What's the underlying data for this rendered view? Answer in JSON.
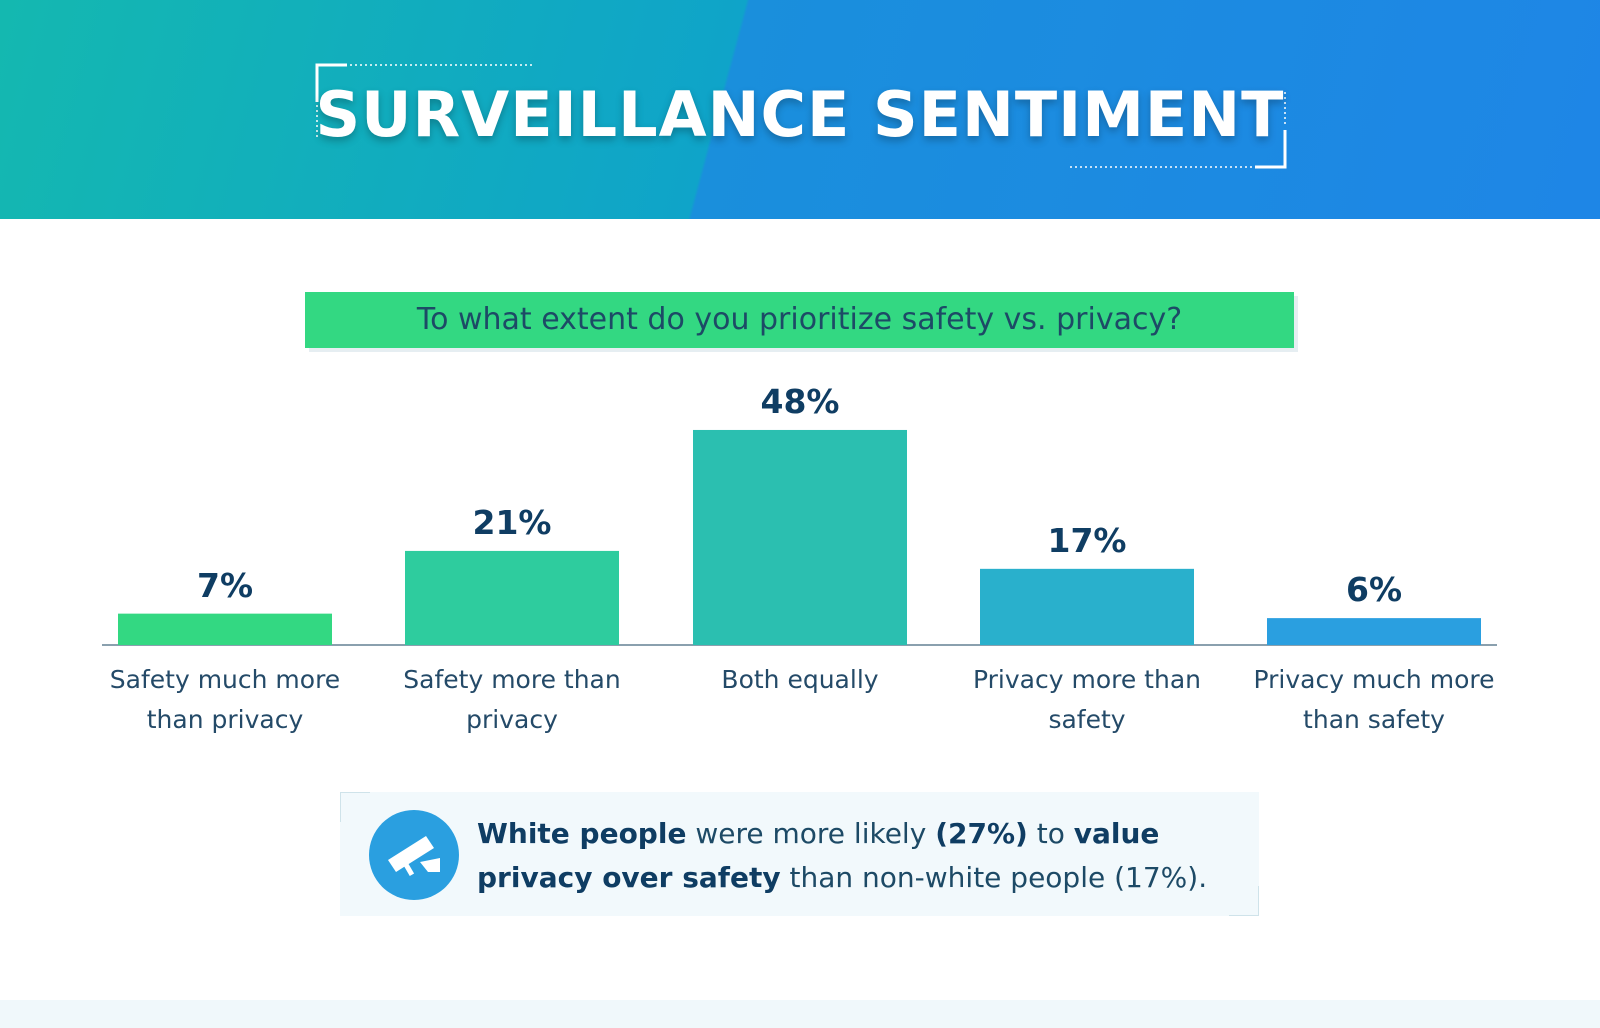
{
  "header": {
    "title": "SURVEILLANCE SENTIMENT"
  },
  "chart_data": {
    "type": "bar",
    "title": "To what extent do you prioritize safety vs. privacy?",
    "categories": [
      "Safety much more than privacy",
      "Safety more than privacy",
      "Both equally",
      "Privacy more than safety",
      "Privacy much more than safety"
    ],
    "values": [
      7,
      21,
      48,
      17,
      6
    ],
    "value_labels": [
      "7%",
      "21%",
      "48%",
      "17%",
      "6%"
    ],
    "colors": [
      "#33d882",
      "#2ecc9e",
      "#2bbfb0",
      "#29b0cc",
      "#2a9fe0"
    ]
  },
  "note": {
    "segments": [
      {
        "text": "White people",
        "bold": true
      },
      {
        "text": " were more likely ",
        "bold": false
      },
      {
        "text": "(27%)",
        "bold": true
      },
      {
        "text": " to ",
        "bold": false
      },
      {
        "text": "value privacy over safety",
        "bold": true
      },
      {
        "text": " than non-white people (17%).",
        "bold": false
      }
    ]
  }
}
